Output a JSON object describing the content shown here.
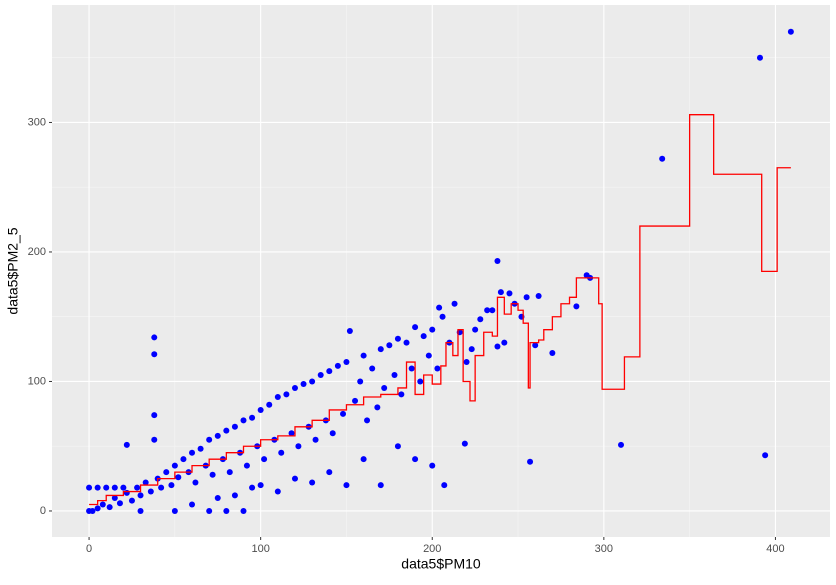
{
  "chart_data": {
    "type": "scatter",
    "x_label": "data5$PM10",
    "y_label": "data5$PM2_5",
    "xlim": [
      -21.6,
      431.8
    ],
    "ylim": [
      -20.1,
      390.7
    ],
    "xticks": [
      0,
      100,
      200,
      300,
      400
    ],
    "yticks": [
      0,
      100,
      200,
      300
    ],
    "grid": true,
    "series": [
      {
        "type": "scatter",
        "color": "#0000ff",
        "x": [
          409,
          391,
          334,
          394,
          310,
          238,
          290,
          292,
          257,
          219,
          207,
          240,
          245,
          255,
          232,
          204,
          260,
          238,
          223,
          38,
          38,
          38,
          38,
          22,
          80,
          0,
          0,
          5,
          10,
          15,
          20,
          2,
          5,
          8,
          12,
          15,
          18,
          22,
          25,
          28,
          30,
          33,
          36,
          40,
          42,
          45,
          48,
          50,
          52,
          55,
          58,
          60,
          62,
          65,
          68,
          70,
          72,
          75,
          78,
          80,
          82,
          85,
          88,
          90,
          92,
          95,
          98,
          100,
          102,
          105,
          108,
          110,
          112,
          115,
          118,
          120,
          122,
          125,
          128,
          130,
          132,
          135,
          138,
          140,
          142,
          145,
          148,
          150,
          152,
          155,
          158,
          160,
          162,
          165,
          168,
          170,
          172,
          175,
          178,
          180,
          182,
          185,
          188,
          190,
          193,
          195,
          198,
          200,
          203,
          206,
          210,
          213,
          216,
          220,
          225,
          228,
          235,
          242,
          248,
          252,
          262,
          270,
          284,
          90,
          70,
          50,
          30,
          100,
          120,
          140,
          150,
          160,
          170,
          180,
          190,
          200,
          130,
          95,
          110,
          85,
          75,
          60
        ],
        "values": [
          370,
          350,
          272,
          43,
          51,
          193,
          182,
          180,
          38,
          52,
          20,
          169,
          168,
          165,
          155,
          157,
          128,
          127,
          125,
          134,
          121,
          74,
          55,
          51,
          0,
          0,
          18,
          18,
          18,
          18,
          18,
          0,
          2,
          5,
          3,
          10,
          6,
          14,
          8,
          18,
          12,
          22,
          15,
          25,
          18,
          30,
          20,
          35,
          26,
          40,
          30,
          45,
          22,
          48,
          35,
          55,
          28,
          58,
          40,
          62,
          30,
          65,
          45,
          70,
          35,
          72,
          50,
          78,
          40,
          82,
          55,
          88,
          45,
          90,
          60,
          95,
          50,
          98,
          65,
          100,
          55,
          105,
          70,
          108,
          60,
          112,
          75,
          115,
          139,
          85,
          100,
          120,
          70,
          110,
          80,
          125,
          95,
          128,
          105,
          133,
          90,
          130,
          110,
          142,
          100,
          135,
          120,
          140,
          110,
          150,
          130,
          160,
          138,
          115,
          140,
          148,
          155,
          130,
          160,
          150,
          166,
          122,
          158,
          0,
          0,
          0,
          0,
          20,
          25,
          30,
          20,
          40,
          20,
          50,
          40,
          35,
          22,
          18,
          15,
          12,
          10,
          5
        ]
      },
      {
        "type": "step",
        "color": "#ff0000",
        "x": [
          0,
          5,
          10,
          20,
          30,
          40,
          50,
          60,
          70,
          80,
          90,
          100,
          110,
          120,
          130,
          140,
          150,
          160,
          170,
          180,
          185,
          190,
          195,
          200,
          205,
          208,
          212,
          215,
          218,
          222,
          225,
          230,
          235,
          238,
          242,
          246,
          250,
          253,
          256,
          257,
          262,
          265,
          270,
          275,
          280,
          284,
          297,
          299,
          312,
          321,
          350,
          364,
          392,
          401,
          409
        ],
        "values": [
          5,
          8,
          12,
          15,
          20,
          25,
          30,
          35,
          40,
          45,
          50,
          55,
          58,
          65,
          70,
          78,
          82,
          88,
          90,
          95,
          115,
          90,
          105,
          98,
          112,
          130,
          120,
          140,
          100,
          85,
          120,
          138,
          135,
          165,
          152,
          160,
          155,
          145,
          95,
          130,
          132,
          140,
          150,
          160,
          165,
          180,
          160,
          94,
          119,
          220,
          306,
          260,
          185,
          265,
          265
        ]
      }
    ]
  }
}
